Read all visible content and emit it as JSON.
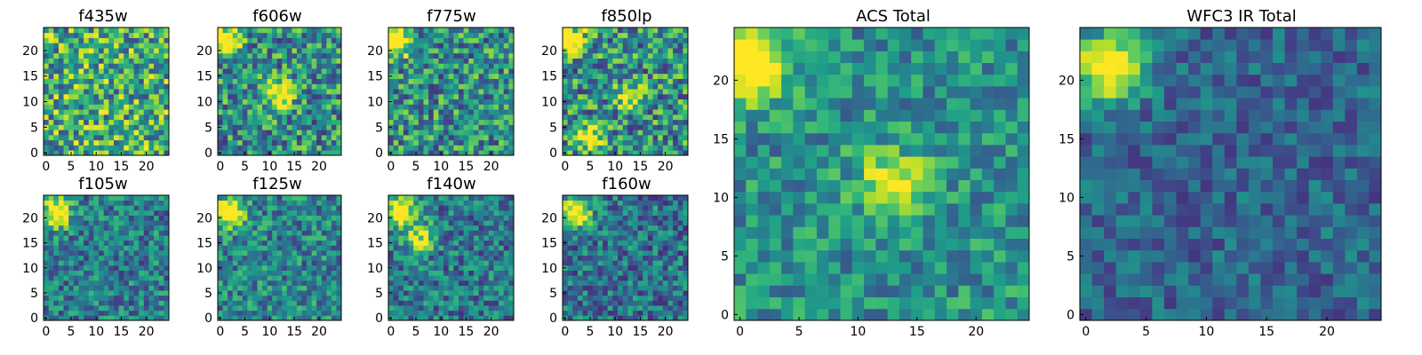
{
  "chart_data": [
    {
      "type": "heatmap",
      "title": "f435w",
      "xlim": [
        -0.5,
        24.5
      ],
      "ylim": [
        -0.5,
        24.5
      ],
      "xticks": [
        0,
        5,
        10,
        15,
        20
      ],
      "yticks": [
        0,
        5,
        10,
        15,
        20
      ],
      "colormap": "viridis",
      "bright_spots": [],
      "noise": 0.38,
      "base": 0.62
    },
    {
      "type": "heatmap",
      "title": "f606w",
      "xlim": [
        -0.5,
        24.5
      ],
      "ylim": [
        -0.5,
        24.5
      ],
      "xticks": [
        0,
        5,
        10,
        15,
        20
      ],
      "yticks": [
        0,
        5,
        10,
        15,
        20
      ],
      "colormap": "viridis",
      "bright_spots": [
        [
          1,
          22,
          0.75
        ],
        [
          12,
          11,
          0.55
        ]
      ],
      "noise": 0.34,
      "base": 0.5
    },
    {
      "type": "heatmap",
      "title": "f775w",
      "xlim": [
        -0.5,
        24.5
      ],
      "ylim": [
        -0.5,
        24.5
      ],
      "xticks": [
        0,
        5,
        10,
        15,
        20
      ],
      "yticks": [
        0,
        5,
        10,
        15,
        20
      ],
      "colormap": "viridis",
      "bright_spots": [
        [
          1,
          22,
          0.8
        ]
      ],
      "noise": 0.34,
      "base": 0.5
    },
    {
      "type": "heatmap",
      "title": "f850lp",
      "xlim": [
        -0.5,
        24.5
      ],
      "ylim": [
        -0.5,
        24.5
      ],
      "xticks": [
        0,
        5,
        10,
        15,
        20
      ],
      "yticks": [
        0,
        5,
        10,
        15,
        20
      ],
      "colormap": "viridis",
      "bright_spots": [
        [
          1,
          22,
          0.75
        ],
        [
          5,
          3,
          0.5
        ],
        [
          13,
          11,
          0.45
        ]
      ],
      "noise": 0.36,
      "base": 0.5
    },
    {
      "type": "heatmap",
      "title": "f105w",
      "xlim": [
        -0.5,
        24.5
      ],
      "ylim": [
        -0.5,
        24.5
      ],
      "xticks": [
        0,
        5,
        10,
        15,
        20
      ],
      "yticks": [
        0,
        5,
        10,
        15,
        20
      ],
      "colormap": "viridis",
      "bright_spots": [
        [
          2,
          21,
          0.8
        ]
      ],
      "noise": 0.26,
      "base": 0.42
    },
    {
      "type": "heatmap",
      "title": "f125w",
      "xlim": [
        -0.5,
        24.5
      ],
      "ylim": [
        -0.5,
        24.5
      ],
      "xticks": [
        0,
        5,
        10,
        15,
        20
      ],
      "yticks": [
        0,
        5,
        10,
        15,
        20
      ],
      "colormap": "viridis",
      "bright_spots": [
        [
          2,
          21,
          0.85
        ]
      ],
      "noise": 0.26,
      "base": 0.45
    },
    {
      "type": "heatmap",
      "title": "f140w",
      "xlim": [
        -0.5,
        24.5
      ],
      "ylim": [
        -0.5,
        24.5
      ],
      "xticks": [
        0,
        5,
        10,
        15,
        20
      ],
      "yticks": [
        0,
        5,
        10,
        15,
        20
      ],
      "colormap": "viridis",
      "bright_spots": [
        [
          2,
          21,
          0.8
        ],
        [
          6,
          16,
          0.5
        ]
      ],
      "noise": 0.26,
      "base": 0.4
    },
    {
      "type": "heatmap",
      "title": "f160w",
      "xlim": [
        -0.5,
        24.5
      ],
      "ylim": [
        -0.5,
        24.5
      ],
      "xticks": [
        0,
        5,
        10,
        15,
        20
      ],
      "yticks": [
        0,
        5,
        10,
        15,
        20
      ],
      "colormap": "viridis",
      "bright_spots": [
        [
          2,
          21,
          0.85
        ]
      ],
      "noise": 0.26,
      "base": 0.38
    },
    {
      "type": "heatmap",
      "title": "ACS Total",
      "xlim": [
        -0.5,
        24.5
      ],
      "ylim": [
        -0.5,
        24.5
      ],
      "xticks": [
        0,
        5,
        10,
        15,
        20
      ],
      "yticks": [
        0,
        5,
        10,
        15,
        20
      ],
      "colormap": "viridis",
      "bright_spots": [
        [
          1,
          21,
          0.8
        ],
        [
          13,
          11,
          0.6
        ]
      ],
      "noise": 0.22,
      "base": 0.5
    },
    {
      "type": "heatmap",
      "title": "WFC3 IR Total",
      "xlim": [
        -0.5,
        24.5
      ],
      "ylim": [
        -0.5,
        24.5
      ],
      "xticks": [
        0,
        5,
        10,
        15,
        20
      ],
      "yticks": [
        0,
        5,
        10,
        15,
        20
      ],
      "colormap": "viridis",
      "bright_spots": [
        [
          2,
          21,
          0.85
        ]
      ],
      "noise": 0.18,
      "base": 0.33
    }
  ],
  "colormap_stops": [
    "#440154",
    "#482878",
    "#3e4989",
    "#31688e",
    "#26828e",
    "#1f9e89",
    "#35b779",
    "#6ece58",
    "#b5de2b",
    "#fde725"
  ]
}
